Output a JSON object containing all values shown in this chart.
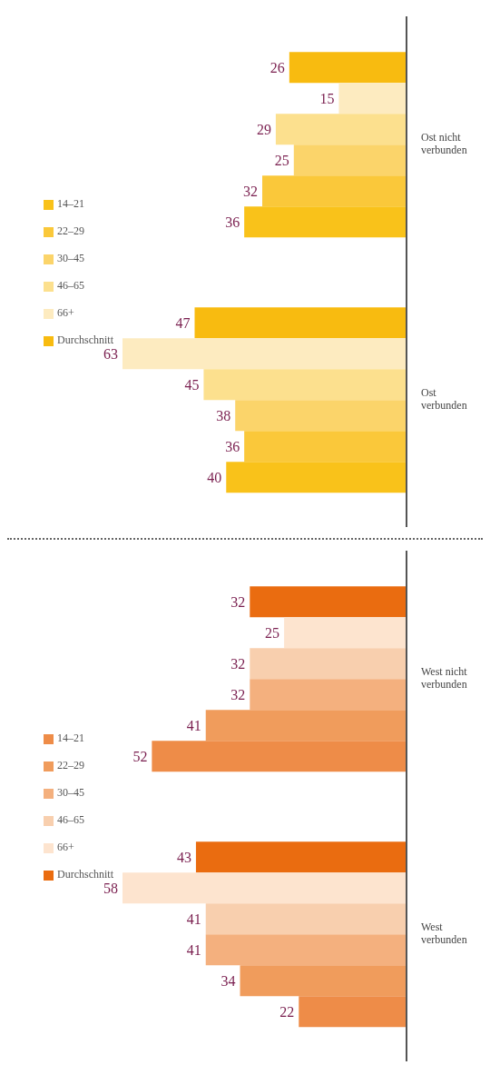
{
  "chart_data": [
    {
      "type": "bar",
      "orientation": "horizontal",
      "categories": [
        "Ost nicht verbunden",
        "Ost verbunden"
      ],
      "data_labels": true,
      "legend": "left",
      "series": [
        {
          "name": "Durchschnitt",
          "colors": [
            "#f8bb10",
            "#f8bb10"
          ],
          "values": [
            26,
            47
          ]
        },
        {
          "name": "66+",
          "colors": [
            "#fdebc0",
            "#fdebc0"
          ],
          "values": [
            15,
            63
          ]
        },
        {
          "name": "46–65",
          "colors": [
            "#fce08e",
            "#fce08e"
          ],
          "values": [
            29,
            45
          ]
        },
        {
          "name": "30–45",
          "colors": [
            "#fbd46a",
            "#fbd46a"
          ],
          "values": [
            25,
            38
          ]
        },
        {
          "name": "22–29",
          "colors": [
            "#fac83a",
            "#fac83a"
          ],
          "values": [
            32,
            36
          ]
        },
        {
          "name": "14–21",
          "colors": [
            "#f9c21a",
            "#f9c21a"
          ],
          "values": [
            36,
            40
          ]
        }
      ]
    },
    {
      "type": "bar",
      "orientation": "horizontal",
      "categories": [
        "West nicht verbunden",
        "West verbunden"
      ],
      "data_labels": true,
      "legend": "left",
      "series": [
        {
          "name": "Durchschnitt",
          "colors": [
            "#ea6c10",
            "#ea6c10"
          ],
          "values": [
            32,
            43
          ]
        },
        {
          "name": "66+",
          "colors": [
            "#fde4cf",
            "#fde4cf"
          ],
          "values": [
            25,
            58
          ]
        },
        {
          "name": "46–65",
          "colors": [
            "#f8cfae",
            "#f8cfae"
          ],
          "values": [
            32,
            41
          ]
        },
        {
          "name": "30–45",
          "colors": [
            "#f4b07e",
            "#f4b07e"
          ],
          "values": [
            32,
            41
          ]
        },
        {
          "name": "22–29",
          "colors": [
            "#f09c5c",
            "#f09c5c"
          ],
          "values": [
            41,
            34
          ]
        },
        {
          "name": "14–21",
          "colors": [
            "#ee8c48",
            "#ee8c48"
          ],
          "values": [
            52,
            22
          ]
        }
      ]
    }
  ]
}
